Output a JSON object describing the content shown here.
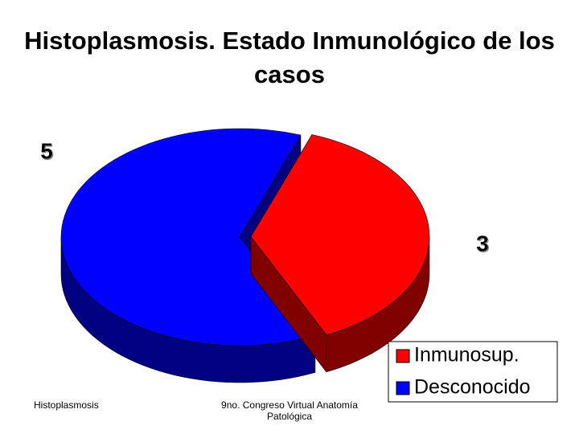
{
  "chart_data": {
    "type": "pie",
    "title": "Histoplasmosis. Estado Inmunológico de los casos",
    "categories": [
      "Inmunosup.",
      "Desconocido"
    ],
    "values": [
      3,
      5
    ],
    "colors": [
      "#ff0000",
      "#0000ff"
    ],
    "legend": "bottom-right"
  },
  "footer": {
    "left": "Histoplasmosis",
    "center": "9no. Congreso Virtual Anatomía Patológica"
  }
}
